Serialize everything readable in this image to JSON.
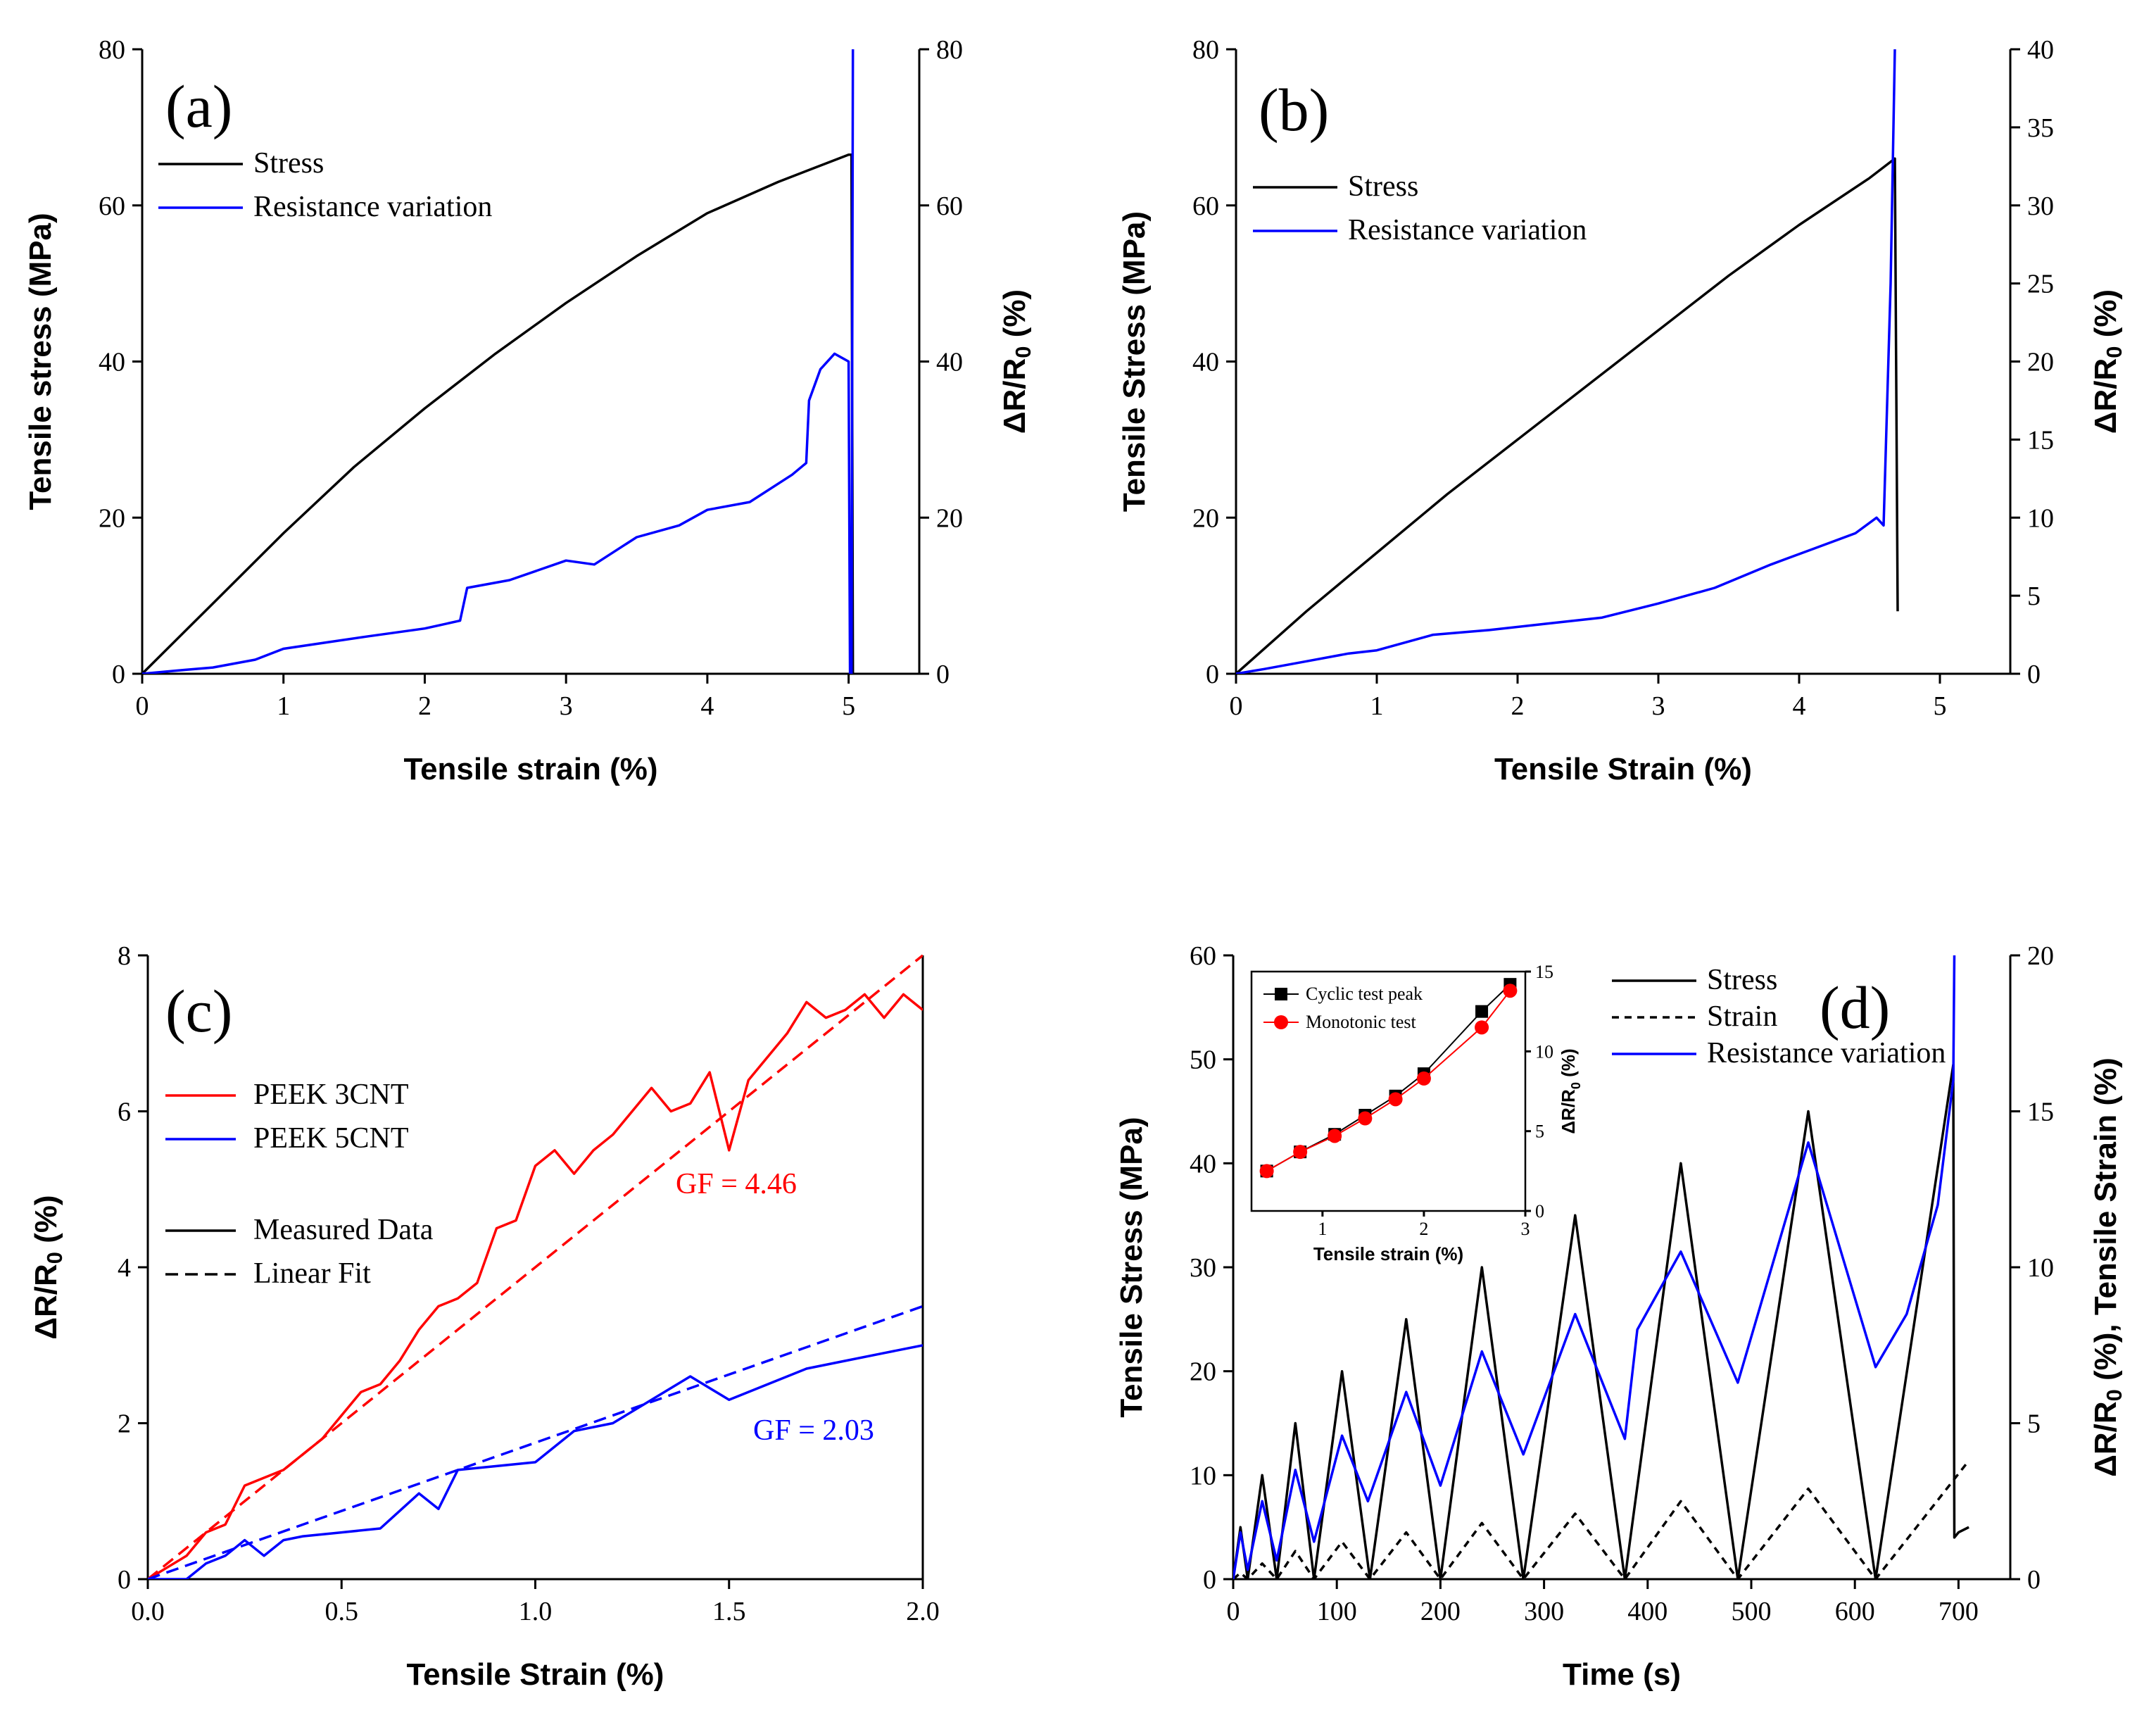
{
  "chart_data": [
    {
      "id": "a",
      "type": "line",
      "panel_label": "(a)",
      "xlabel": "Tensile strain (%)",
      "ylabel": "Tensile stress (MPa)",
      "y2label": "ΔR/R0 (%)",
      "xlim": [
        0,
        5.5
      ],
      "ylim": [
        0,
        80
      ],
      "y2lim": [
        0,
        80
      ],
      "xticks": [
        0,
        1,
        2,
        3,
        4,
        5
      ],
      "yticks": [
        0,
        20,
        40,
        60,
        80
      ],
      "y2ticks": [
        0,
        20,
        40,
        60,
        80
      ],
      "legend_position": "top-left",
      "series": [
        {
          "name": "Stress",
          "axis": "y",
          "color": "#000000",
          "x": [
            0,
            0.5,
            1,
            1.5,
            2,
            2.5,
            3,
            3.5,
            4,
            4.5,
            5,
            5.02,
            5.03
          ],
          "y": [
            0,
            9,
            18,
            26.5,
            34,
            41,
            47.5,
            53.5,
            59,
            63,
            66.5,
            66.5,
            0
          ]
        },
        {
          "name": "Resistance variation",
          "axis": "y2",
          "color": "#0000ff",
          "x": [
            0,
            0.3,
            0.5,
            0.8,
            1.0,
            1.3,
            1.6,
            2.0,
            2.25,
            2.3,
            2.6,
            3.0,
            3.2,
            3.5,
            3.8,
            4.0,
            4.3,
            4.6,
            4.7,
            4.72,
            4.8,
            4.9,
            5.0,
            5.01,
            5.02,
            5.03
          ],
          "y": [
            0,
            0.5,
            0.8,
            1.8,
            3.2,
            4.0,
            4.8,
            5.8,
            6.8,
            11,
            12,
            14.5,
            14,
            17.5,
            19,
            21,
            22,
            25.5,
            27,
            35,
            39,
            41,
            40,
            0,
            0,
            80
          ]
        }
      ]
    },
    {
      "id": "b",
      "type": "line",
      "panel_label": "(b)",
      "xlabel": "Tensile Strain (%)",
      "ylabel": "Tensile Stress (MPa)",
      "y2label": "ΔR/R0 (%)",
      "xlim": [
        0,
        5.5
      ],
      "ylim": [
        0,
        80
      ],
      "y2lim": [
        0,
        40
      ],
      "xticks": [
        0,
        1,
        2,
        3,
        4,
        5
      ],
      "yticks": [
        0,
        20,
        40,
        60,
        80
      ],
      "y2ticks": [
        0,
        5,
        10,
        15,
        20,
        25,
        30,
        35,
        40
      ],
      "legend_position": "top-left",
      "series": [
        {
          "name": "Stress",
          "axis": "y",
          "color": "#000000",
          "x": [
            0,
            0.5,
            1,
            1.5,
            2,
            2.5,
            3,
            3.5,
            4,
            4.5,
            4.68,
            4.7
          ],
          "y": [
            0,
            8,
            15.5,
            23,
            30,
            37,
            44,
            51,
            57.5,
            63.5,
            66,
            8
          ]
        },
        {
          "name": "Resistance variation",
          "axis": "y2",
          "color": "#0000ff",
          "x": [
            0,
            0.2,
            0.5,
            0.8,
            1.0,
            1.4,
            1.8,
            2.2,
            2.6,
            3.0,
            3.4,
            3.8,
            4.1,
            4.4,
            4.55,
            4.6,
            4.65,
            4.68
          ],
          "y": [
            0,
            0.3,
            0.8,
            1.3,
            1.5,
            2.5,
            2.8,
            3.2,
            3.6,
            4.5,
            5.5,
            7.0,
            8.0,
            9.0,
            10,
            9.5,
            25,
            40
          ]
        }
      ]
    },
    {
      "id": "c",
      "type": "line",
      "panel_label": "(c)",
      "xlabel": "Tensile Strain (%)",
      "ylabel": "ΔR/R0 (%)",
      "xlim": [
        0,
        2.0
      ],
      "ylim": [
        0,
        8
      ],
      "xticks": [
        0.0,
        0.5,
        1.0,
        1.5,
        2.0
      ],
      "xtick_labels": [
        "0.0",
        "0.5",
        "1.0",
        "1.5",
        "2.0"
      ],
      "yticks": [
        0,
        2,
        4,
        6,
        8
      ],
      "legend_position": "middle-left",
      "annotations": [
        {
          "text": "GF = 4.46",
          "color": "#ff0000"
        },
        {
          "text": "GF = 2.03",
          "color": "#0000ff"
        }
      ],
      "series": [
        {
          "name": "PEEK 3CNT",
          "style": "solid",
          "color": "#ff0000",
          "x": [
            0,
            0.1,
            0.15,
            0.2,
            0.25,
            0.3,
            0.35,
            0.4,
            0.45,
            0.5,
            0.55,
            0.6,
            0.65,
            0.7,
            0.75,
            0.8,
            0.85,
            0.9,
            0.95,
            1.0,
            1.05,
            1.1,
            1.15,
            1.2,
            1.25,
            1.3,
            1.35,
            1.4,
            1.45,
            1.5,
            1.55,
            1.6,
            1.65,
            1.7,
            1.75,
            1.8,
            1.85,
            1.9,
            1.95,
            2.0
          ],
          "y": [
            0,
            0.3,
            0.6,
            0.7,
            1.2,
            1.3,
            1.4,
            1.6,
            1.8,
            2.1,
            2.4,
            2.5,
            2.8,
            3.2,
            3.5,
            3.6,
            3.8,
            4.5,
            4.6,
            5.3,
            5.5,
            5.2,
            5.5,
            5.7,
            6.0,
            6.3,
            6.0,
            6.1,
            6.5,
            5.5,
            6.4,
            6.7,
            7.0,
            7.4,
            7.2,
            7.3,
            7.5,
            7.2,
            7.5,
            7.3
          ]
        },
        {
          "name": "PEEK 5CNT",
          "style": "solid",
          "color": "#0000ff",
          "x": [
            0,
            0.1,
            0.15,
            0.2,
            0.25,
            0.3,
            0.35,
            0.4,
            0.5,
            0.6,
            0.7,
            0.75,
            0.8,
            0.9,
            1.0,
            1.1,
            1.2,
            1.3,
            1.4,
            1.5,
            1.6,
            1.7,
            1.8,
            1.9,
            2.0
          ],
          "y": [
            0,
            0.0,
            0.2,
            0.3,
            0.5,
            0.3,
            0.5,
            0.55,
            0.6,
            0.65,
            1.1,
            0.9,
            1.4,
            1.45,
            1.5,
            1.9,
            2.0,
            2.3,
            2.6,
            2.3,
            2.5,
            2.7,
            2.8,
            2.9,
            3.0
          ]
        },
        {
          "name": "PEEK 3CNT fit",
          "style": "dashed",
          "color": "#ff0000",
          "x": [
            0,
            2.0
          ],
          "y": [
            0,
            8.0
          ]
        },
        {
          "name": "PEEK 5CNT fit",
          "style": "dashed",
          "color": "#0000ff",
          "x": [
            0,
            2.0
          ],
          "y": [
            0,
            3.5
          ]
        }
      ],
      "legend_style": [
        {
          "label": "Measured Data",
          "style": "solid"
        },
        {
          "label": "Linear Fit",
          "style": "dashed"
        }
      ]
    },
    {
      "id": "d",
      "type": "line",
      "panel_label": "(d)",
      "xlabel": "Time (s)",
      "ylabel": "Tensile Stress (MPa)",
      "y2label": "ΔR/R0 (%),   Tensile Strain (%)",
      "xlim": [
        0,
        750
      ],
      "ylim": [
        0,
        60
      ],
      "y2lim": [
        0,
        20
      ],
      "xticks": [
        0,
        100,
        200,
        300,
        400,
        500,
        600,
        700
      ],
      "yticks": [
        0,
        10,
        20,
        30,
        40,
        50,
        60
      ],
      "y2ticks": [
        0,
        5,
        10,
        15,
        20
      ],
      "legend_position": "top-right",
      "series": [
        {
          "name": "Stress",
          "axis": "y",
          "color": "#000000",
          "style": "solid",
          "x": [
            0,
            7,
            14,
            28,
            42,
            60,
            78,
            105,
            132,
            167,
            200,
            240,
            280,
            330,
            378,
            432,
            487,
            555,
            620,
            695,
            696,
            700,
            710
          ],
          "y": [
            0,
            5,
            0,
            10,
            0,
            15,
            0,
            20,
            0,
            25,
            0,
            30,
            0,
            35,
            0,
            40,
            0,
            45,
            0,
            49.5,
            4,
            4.5,
            5
          ]
        },
        {
          "name": "Strain",
          "axis": "y2",
          "color": "#000000",
          "style": "dashed",
          "x": [
            0,
            7,
            14,
            28,
            42,
            60,
            78,
            105,
            132,
            167,
            200,
            240,
            280,
            330,
            378,
            432,
            487,
            555,
            620,
            710
          ],
          "y": [
            0,
            0.2,
            0,
            0.5,
            0,
            0.9,
            0,
            1.2,
            0,
            1.5,
            0,
            1.8,
            0,
            2.1,
            0,
            2.5,
            0,
            2.9,
            0,
            3.8
          ]
        },
        {
          "name": "Resistance variation",
          "axis": "y2",
          "color": "#0000ff",
          "style": "solid",
          "x": [
            0,
            7,
            14,
            28,
            42,
            60,
            78,
            105,
            130,
            167,
            200,
            240,
            280,
            330,
            378,
            390,
            432,
            487,
            555,
            620,
            650,
            680,
            695,
            696
          ],
          "y": [
            0,
            1.5,
            0.3,
            2.5,
            0.6,
            3.5,
            1.2,
            4.6,
            2.5,
            6.0,
            3.0,
            7.3,
            4.0,
            8.5,
            4.5,
            8.0,
            10.5,
            6.3,
            14.0,
            6.8,
            8.5,
            12.0,
            16.0,
            20
          ]
        }
      ],
      "inset": {
        "xlabel": "Tensile strain (%)",
        "ylabel": "ΔR/R0 (%)",
        "xlim": [
          0.3,
          3.0
        ],
        "ylim": [
          0,
          15
        ],
        "xticks": [
          1,
          2,
          3
        ],
        "yticks": [
          0,
          5,
          10,
          15
        ],
        "series": [
          {
            "name": "Cyclic test peak",
            "color": "#000000",
            "marker": "square",
            "x": [
              0.45,
              0.78,
              1.12,
              1.42,
              1.72,
              2.0,
              2.57,
              2.85
            ],
            "y": [
              2.5,
              3.7,
              4.8,
              6.0,
              7.2,
              8.6,
              12.5,
              14.2
            ]
          },
          {
            "name": "Monotonic test",
            "color": "#ff0000",
            "marker": "circle",
            "x": [
              0.45,
              0.78,
              1.12,
              1.42,
              1.72,
              2.0,
              2.57,
              2.85
            ],
            "y": [
              2.5,
              3.7,
              4.7,
              5.8,
              7.0,
              8.3,
              11.5,
              13.8
            ]
          }
        ]
      }
    }
  ]
}
